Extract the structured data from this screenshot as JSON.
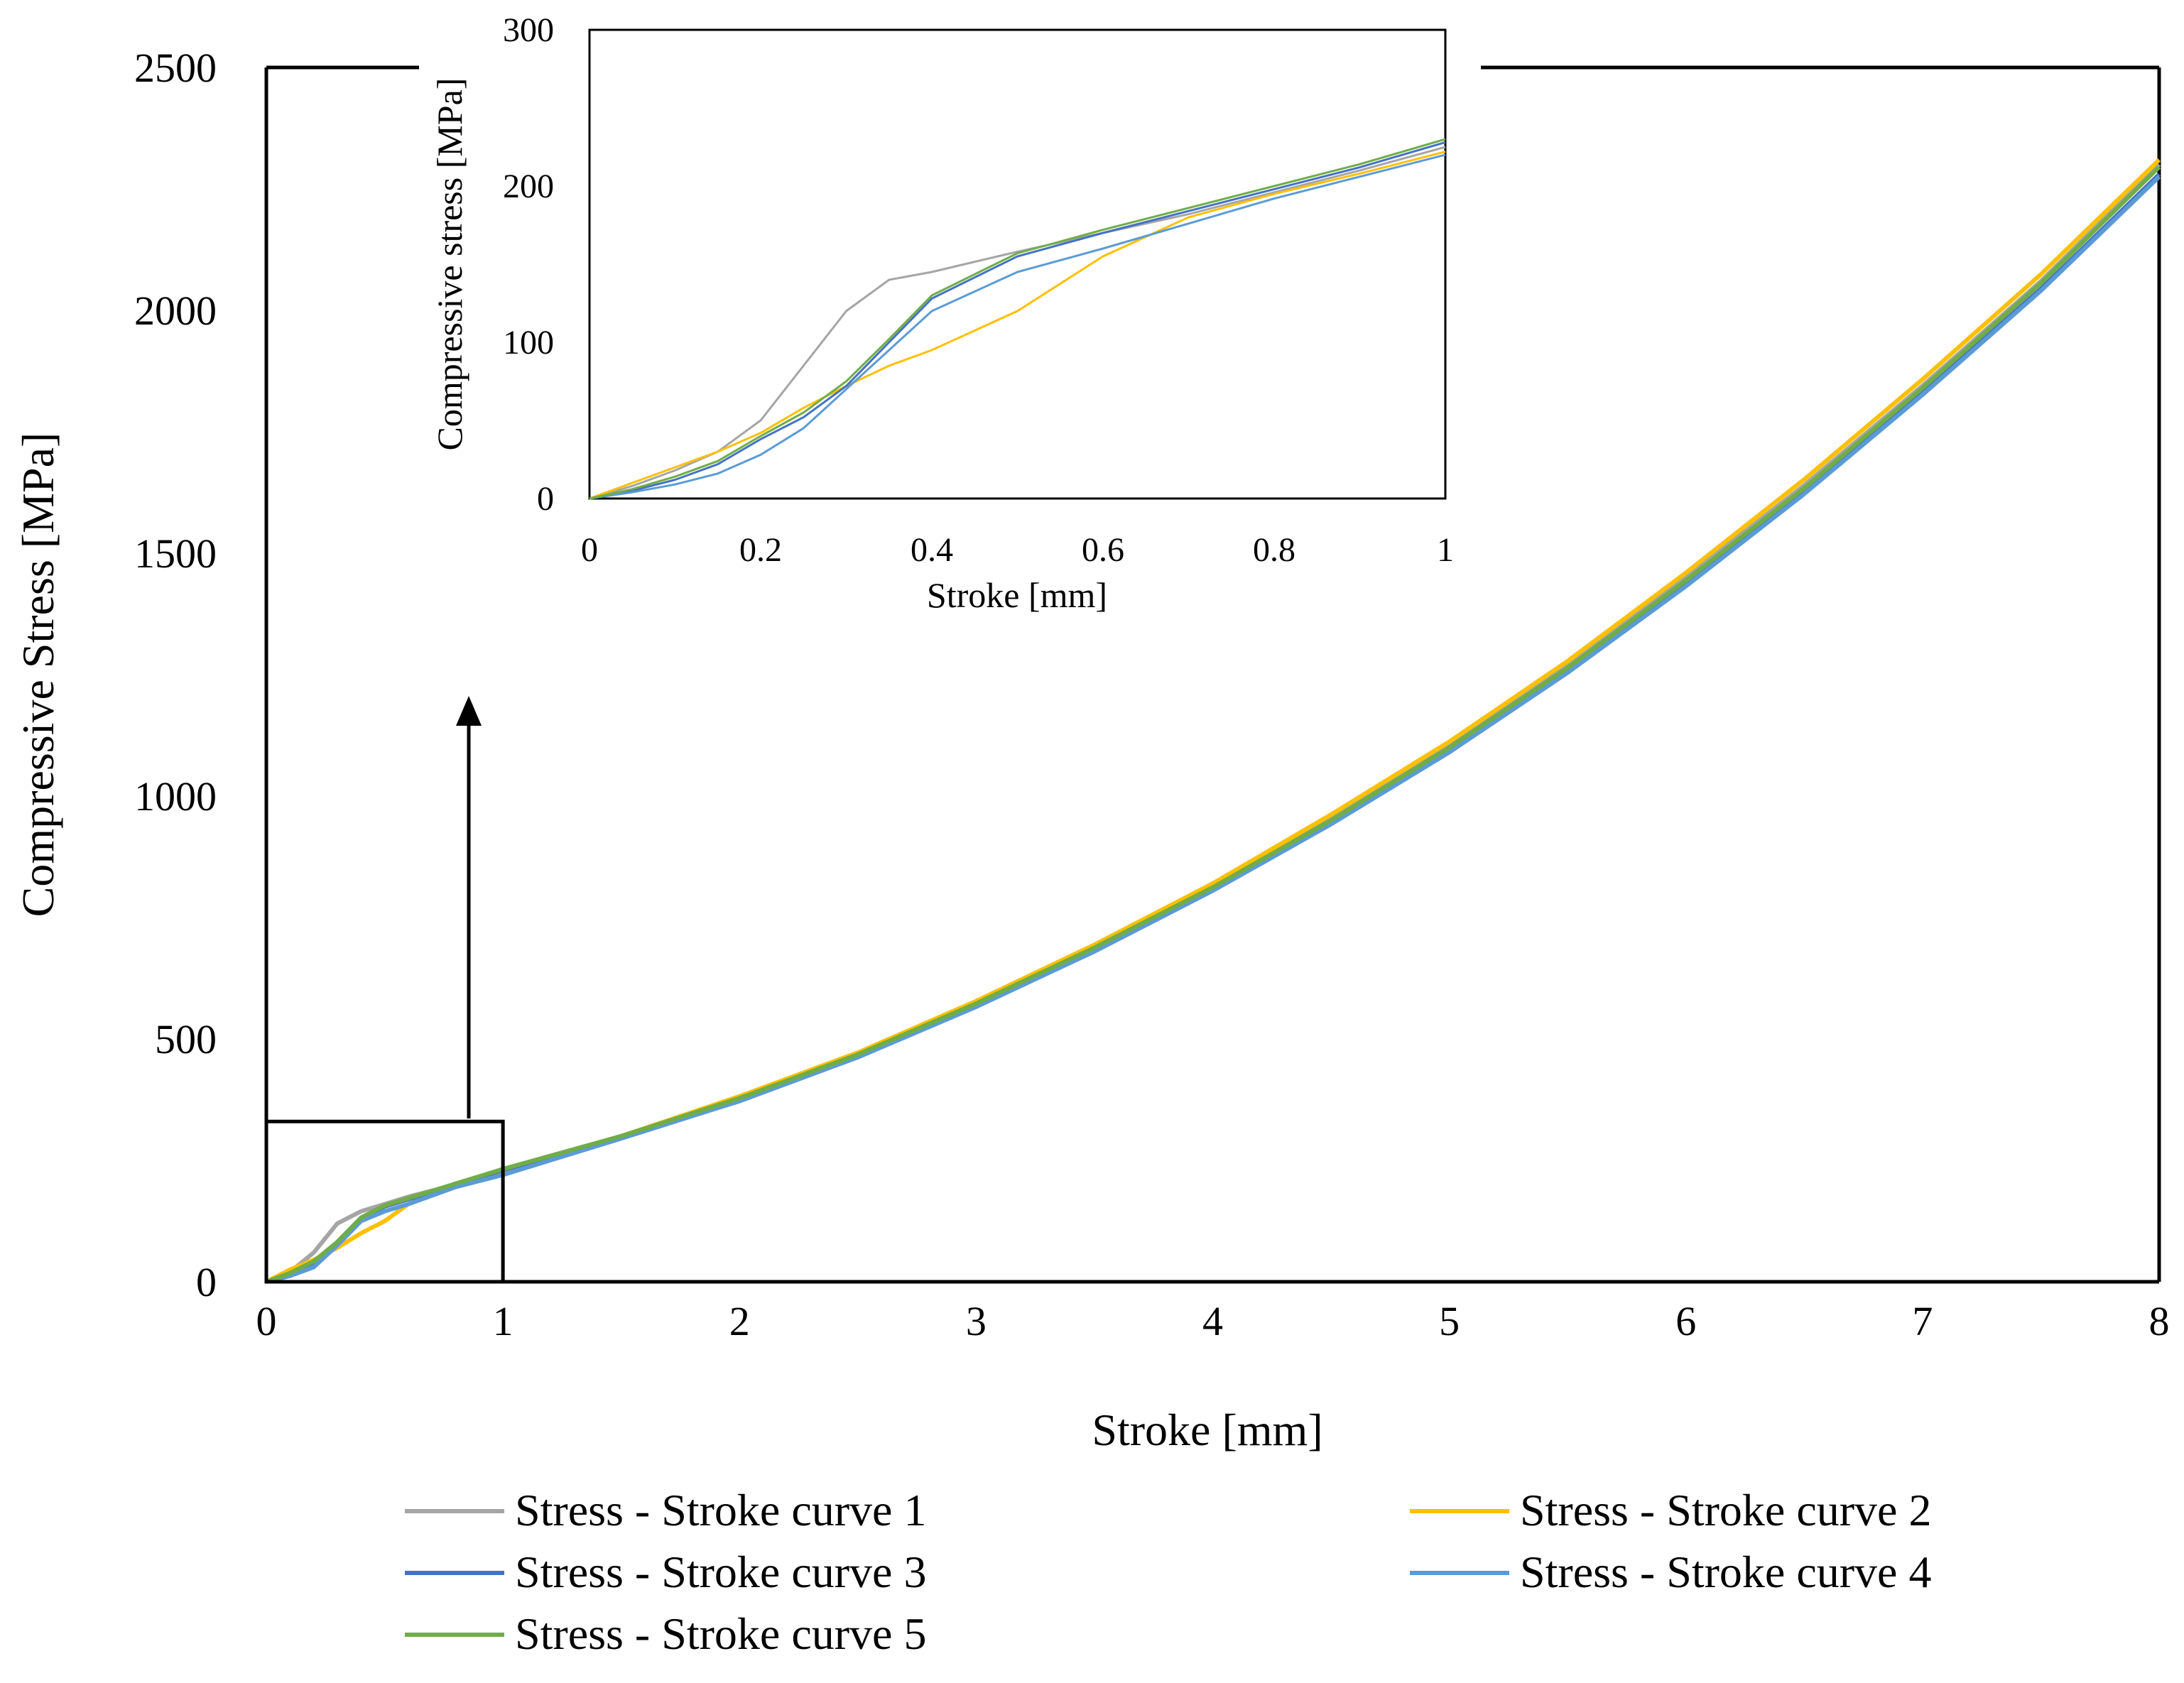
{
  "chart_data": [
    {
      "id": "main",
      "type": "line",
      "title": "",
      "xlabel": "Stroke [mm]",
      "ylabel": "Compressive Stress [MPa]",
      "xlim": [
        0,
        8
      ],
      "ylim": [
        0,
        2500
      ],
      "xticks": [
        "0",
        "1",
        "2",
        "3",
        "4",
        "5",
        "6",
        "7",
        "8"
      ],
      "yticks": [
        "0",
        "500",
        "1000",
        "1500",
        "2000",
        "2500"
      ],
      "grid": false,
      "legend_position": "bottom",
      "zoom_box": {
        "x": [
          0,
          1
        ],
        "y": [
          0,
          330
        ]
      },
      "series": [
        {
          "name": "Stress - Stroke curve 1",
          "color": "#a5a5a5",
          "x": [
            0,
            0.1,
            0.2,
            0.3,
            0.4,
            0.5,
            0.6,
            0.8,
            1,
            1.5,
            2,
            2.5,
            3,
            3.5,
            4,
            4.5,
            5,
            5.5,
            6,
            6.5,
            7,
            7.5,
            8
          ],
          "y": [
            0,
            20,
            60,
            120,
            145,
            160,
            175,
            200,
            225,
            300,
            380,
            470,
            575,
            690,
            815,
            955,
            1105,
            1270,
            1450,
            1640,
            1845,
            2060,
            2300
          ]
        },
        {
          "name": "Stress - Stroke curve 2",
          "color": "#ffc000",
          "x": [
            0,
            0.1,
            0.2,
            0.3,
            0.4,
            0.5,
            0.6,
            0.8,
            1,
            1.5,
            2,
            2.5,
            3,
            3.5,
            4,
            4.5,
            5,
            5.5,
            6,
            6.5,
            7,
            7.5,
            8
          ],
          "y": [
            0,
            25,
            45,
            70,
            100,
            125,
            160,
            200,
            222,
            300,
            382,
            472,
            578,
            694,
            820,
            962,
            1112,
            1278,
            1460,
            1652,
            1858,
            2074,
            2310
          ]
        },
        {
          "name": "Stress - Stroke curve 3",
          "color": "#4472c4",
          "x": [
            0,
            0.1,
            0.2,
            0.3,
            0.4,
            0.5,
            0.6,
            0.8,
            1,
            1.5,
            2,
            2.5,
            3,
            3.5,
            4,
            4.5,
            5,
            5.5,
            6,
            6.5,
            7,
            7.5,
            8
          ],
          "y": [
            0,
            15,
            40,
            80,
            130,
            155,
            170,
            200,
            230,
            298,
            375,
            465,
            570,
            684,
            808,
            946,
            1095,
            1258,
            1436,
            1626,
            1830,
            2044,
            2280
          ]
        },
        {
          "name": "Stress - Stroke curve 4",
          "color": "#5b9bd5",
          "x": [
            0,
            0.1,
            0.2,
            0.3,
            0.4,
            0.5,
            0.6,
            0.8,
            1,
            1.5,
            2,
            2.5,
            3,
            3.5,
            4,
            4.5,
            5,
            5.5,
            6,
            6.5,
            7,
            7.5,
            8
          ],
          "y": [
            0,
            12,
            30,
            75,
            125,
            145,
            160,
            195,
            220,
            295,
            372,
            462,
            566,
            680,
            805,
            942,
            1090,
            1254,
            1432,
            1622,
            1826,
            2040,
            2275
          ]
        },
        {
          "name": "Stress - Stroke curve 5",
          "color": "#70ad47",
          "x": [
            0,
            0.1,
            0.2,
            0.3,
            0.4,
            0.5,
            0.6,
            0.8,
            1,
            1.5,
            2,
            2.5,
            3,
            3.5,
            4,
            4.5,
            5,
            5.5,
            6,
            6.5,
            7,
            7.5,
            8
          ],
          "y": [
            0,
            18,
            42,
            82,
            132,
            157,
            172,
            202,
            232,
            300,
            378,
            468,
            573,
            688,
            812,
            950,
            1100,
            1264,
            1444,
            1634,
            1840,
            2056,
            2295
          ]
        }
      ]
    },
    {
      "id": "inset",
      "type": "line",
      "title": "",
      "xlabel": "Stroke [mm]",
      "ylabel": "Compressive  stress [MPa]",
      "xlim": [
        0,
        1
      ],
      "ylim": [
        0,
        300
      ],
      "xticks": [
        "0",
        "0.2",
        "0.4",
        "0.6",
        "0.8",
        "1"
      ],
      "yticks": [
        "0",
        "100",
        "200",
        "300"
      ],
      "grid": false,
      "series": [
        {
          "name": "Stress - Stroke curve 1",
          "color": "#a5a5a5",
          "x": [
            0,
            0.05,
            0.1,
            0.15,
            0.2,
            0.25,
            0.3,
            0.35,
            0.4,
            0.5,
            0.6,
            0.7,
            0.8,
            0.9,
            1
          ],
          "y": [
            0,
            8,
            18,
            30,
            50,
            85,
            120,
            140,
            145,
            158,
            170,
            182,
            196,
            210,
            225
          ]
        },
        {
          "name": "Stress - Stroke curve 2",
          "color": "#ffc000",
          "x": [
            0,
            0.05,
            0.1,
            0.15,
            0.2,
            0.25,
            0.3,
            0.35,
            0.4,
            0.5,
            0.6,
            0.7,
            0.8,
            0.9,
            1
          ],
          "y": [
            0,
            10,
            20,
            30,
            42,
            58,
            72,
            85,
            95,
            120,
            155,
            180,
            195,
            208,
            222
          ]
        },
        {
          "name": "Stress - Stroke curve 3",
          "color": "#4472c4",
          "x": [
            0,
            0.05,
            0.1,
            0.15,
            0.2,
            0.25,
            0.3,
            0.35,
            0.4,
            0.5,
            0.6,
            0.7,
            0.8,
            0.9,
            1
          ],
          "y": [
            0,
            5,
            12,
            22,
            38,
            52,
            72,
            100,
            128,
            155,
            170,
            184,
            198,
            212,
            228
          ]
        },
        {
          "name": "Stress - Stroke curve 4",
          "color": "#5b9bd5",
          "x": [
            0,
            0.05,
            0.1,
            0.15,
            0.2,
            0.25,
            0.3,
            0.35,
            0.4,
            0.5,
            0.6,
            0.7,
            0.8,
            0.9,
            1
          ],
          "y": [
            0,
            4,
            9,
            16,
            28,
            45,
            70,
            95,
            120,
            145,
            160,
            176,
            192,
            206,
            220
          ]
        },
        {
          "name": "Stress - Stroke curve 5",
          "color": "#70ad47",
          "x": [
            0,
            0.05,
            0.1,
            0.15,
            0.2,
            0.25,
            0.3,
            0.35,
            0.4,
            0.5,
            0.6,
            0.7,
            0.8,
            0.9,
            1
          ],
          "y": [
            0,
            6,
            14,
            24,
            40,
            55,
            75,
            102,
            130,
            157,
            172,
            186,
            200,
            214,
            230
          ]
        }
      ]
    }
  ]
}
